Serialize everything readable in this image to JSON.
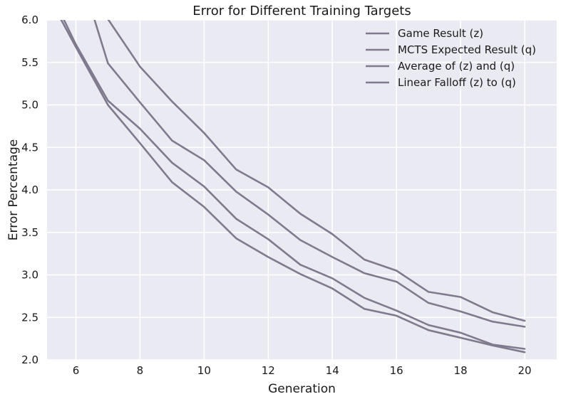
{
  "chart_data": {
    "type": "line",
    "title": "Error for Different Training Targets",
    "xlabel": "Generation",
    "ylabel": "Error Percentage",
    "xlim": [
      5.1,
      21
    ],
    "ylim": [
      2.0,
      6.0
    ],
    "xticks": [
      6,
      8,
      10,
      12,
      14,
      16,
      18,
      20
    ],
    "yticks": [
      2.0,
      2.5,
      3.0,
      3.5,
      4.0,
      4.5,
      5.0,
      5.5,
      6.0
    ],
    "grid": true,
    "legend_position": "top-right",
    "line_color": "#7f7a8e",
    "background_color": "#eaeaf2",
    "grid_color": "#ffffff",
    "series": [
      {
        "name": "Game Result (z)",
        "x": [
          6.5,
          7,
          8,
          9,
          10,
          11,
          12,
          13,
          14,
          15,
          16,
          17,
          18,
          19,
          20
        ],
        "y": [
          6.1,
          5.49,
          5.03,
          4.58,
          4.35,
          3.98,
          3.71,
          3.41,
          3.21,
          3.02,
          2.92,
          2.67,
          2.57,
          2.45,
          2.39
        ]
      },
      {
        "name": "MCTS Expected Result (q)",
        "x": [
          6.7,
          7,
          8,
          9,
          10,
          11,
          12,
          13,
          14,
          15,
          16,
          17,
          18,
          19,
          20
        ],
        "y": [
          6.15,
          6.01,
          5.45,
          5.04,
          4.67,
          4.24,
          4.03,
          3.72,
          3.48,
          3.18,
          3.05,
          2.8,
          2.74,
          2.56,
          2.46
        ]
      },
      {
        "name": "Average of (z) and (q)",
        "x": [
          5.5,
          6,
          7,
          8,
          9,
          10,
          11,
          12,
          13,
          14,
          15,
          16,
          17,
          18,
          19,
          20
        ],
        "y": [
          6.1,
          5.71,
          5.05,
          4.72,
          4.32,
          4.04,
          3.66,
          3.42,
          3.12,
          2.96,
          2.73,
          2.58,
          2.41,
          2.32,
          2.18,
          2.13
        ]
      },
      {
        "name": "Linear Falloff (z) to (q)",
        "x": [
          5.4,
          6,
          7,
          8,
          9,
          10,
          11,
          12,
          13,
          14,
          15,
          16,
          17,
          18,
          19,
          20
        ],
        "y": [
          6.1,
          5.68,
          5.0,
          4.55,
          4.09,
          3.8,
          3.43,
          3.21,
          3.01,
          2.84,
          2.6,
          2.52,
          2.35,
          2.26,
          2.17,
          2.09
        ]
      }
    ]
  }
}
